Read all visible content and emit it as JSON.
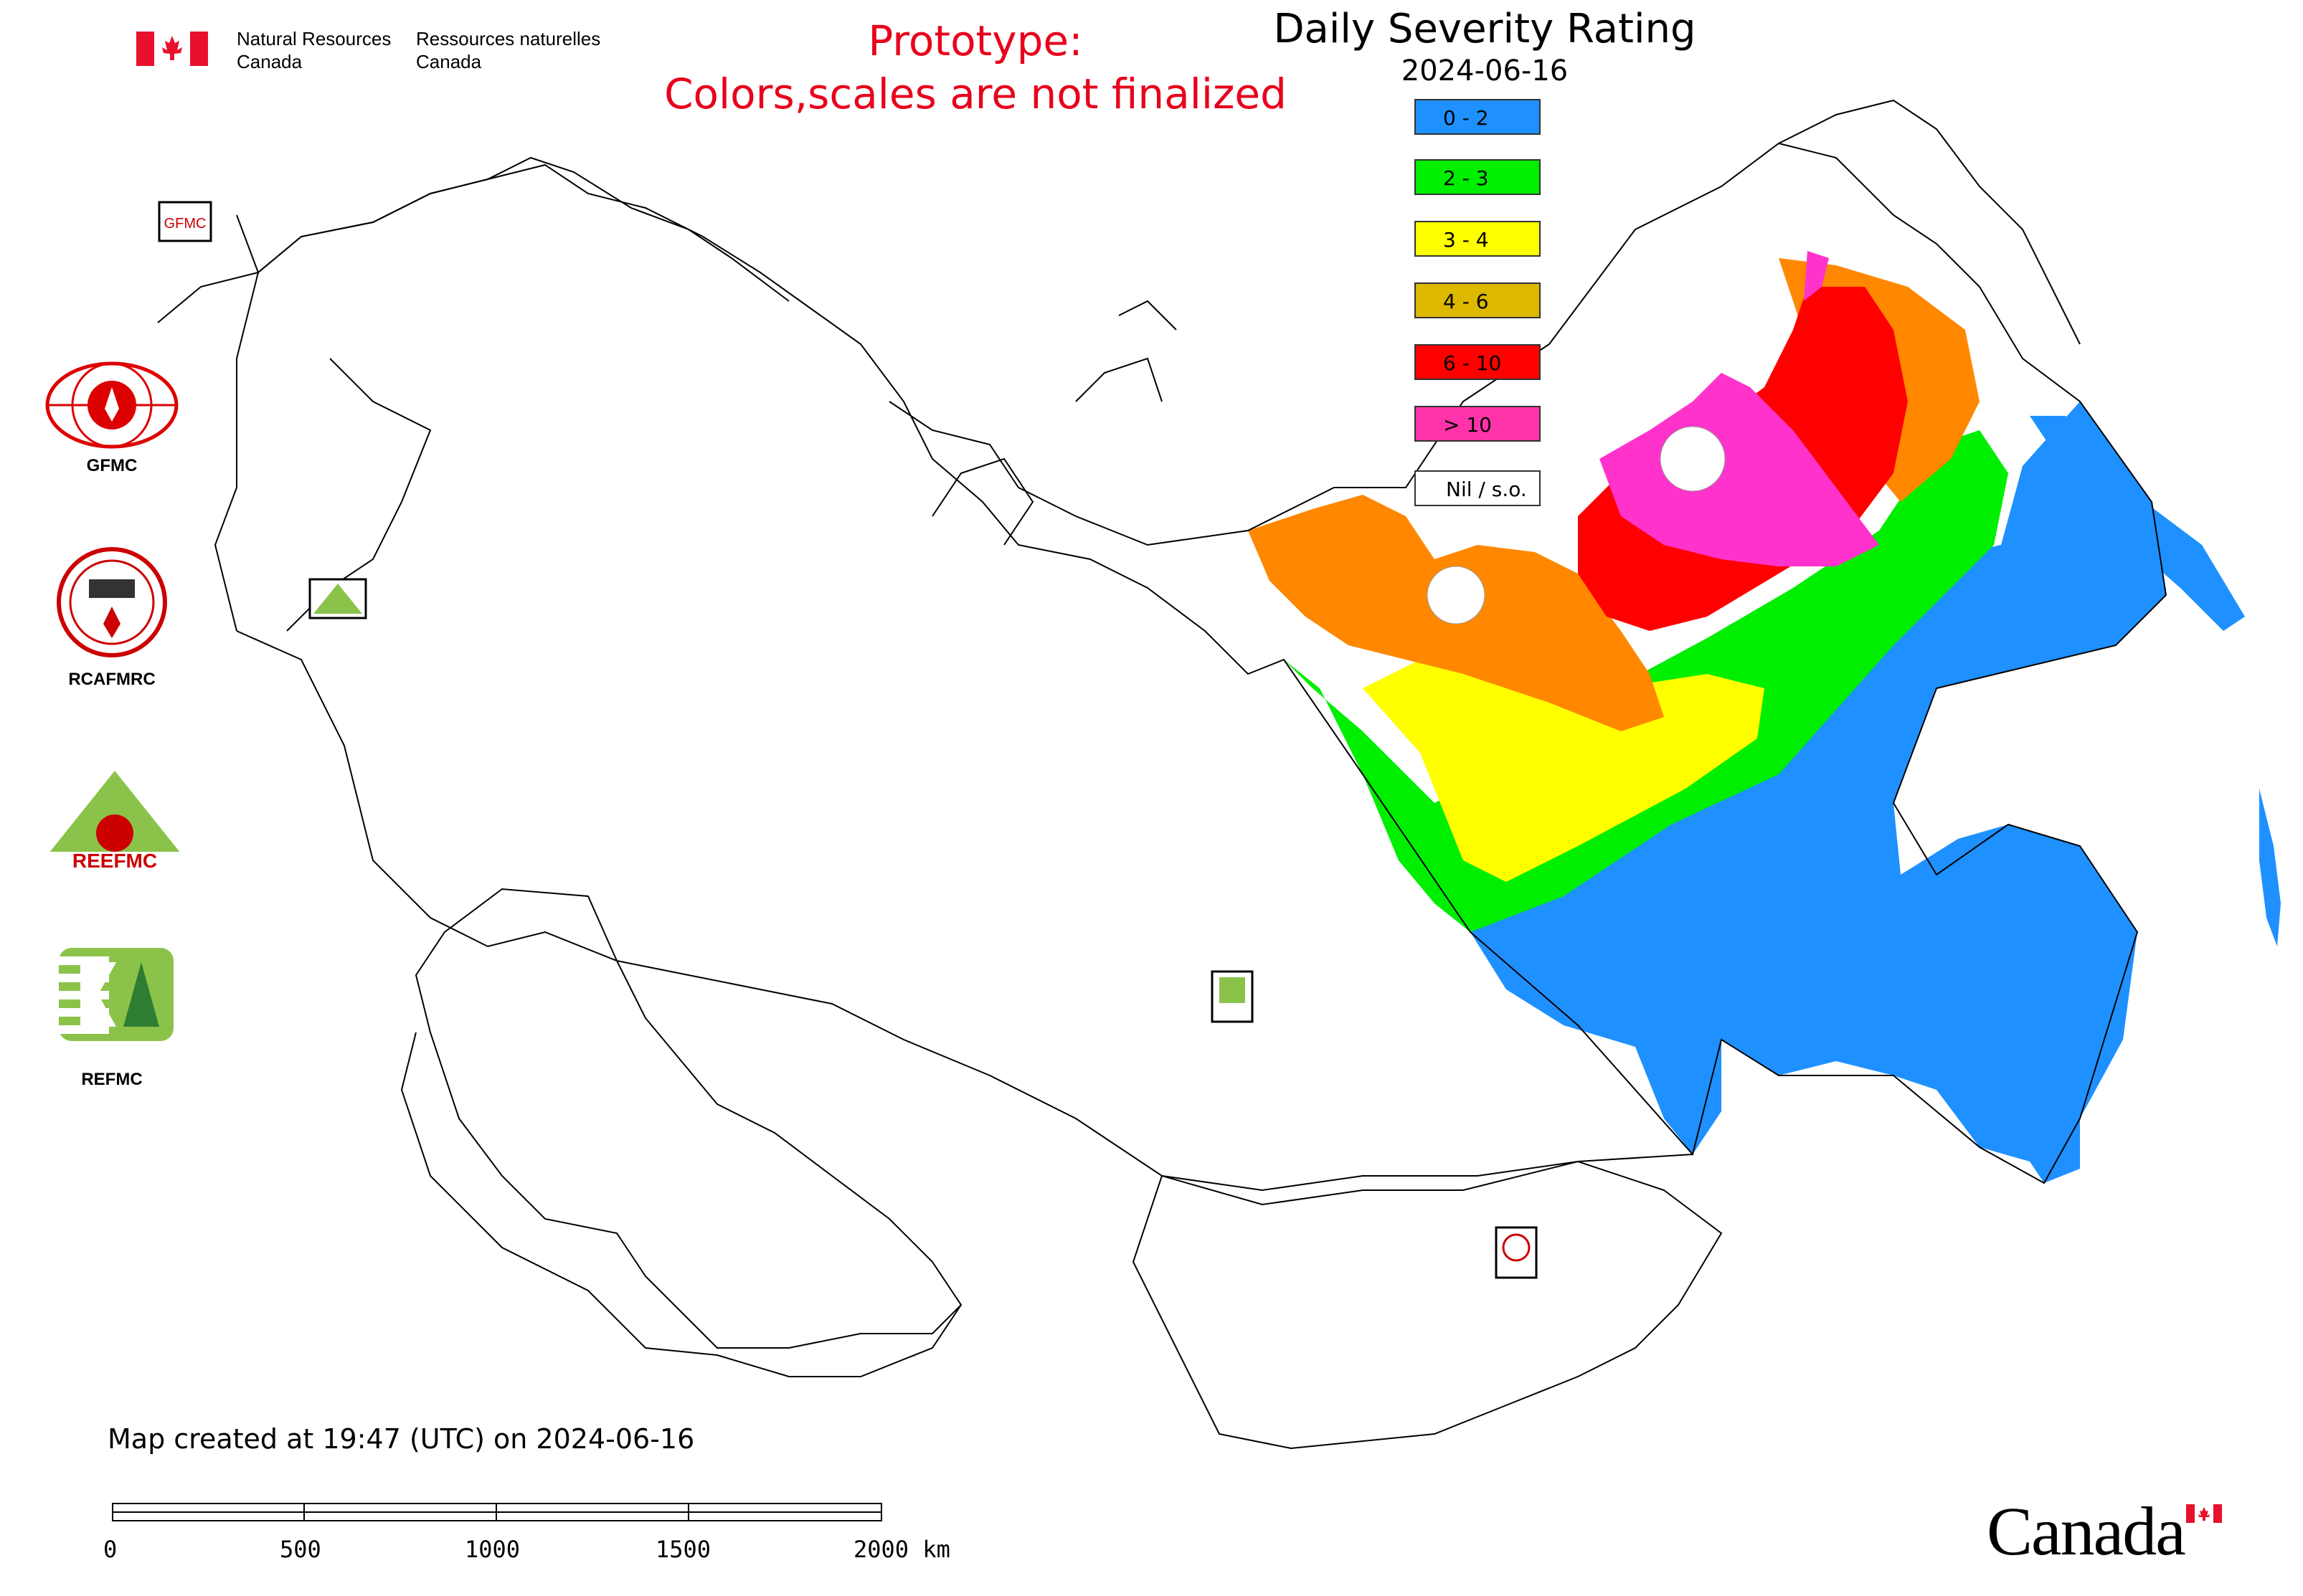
{
  "header": {
    "agency_en": [
      "Natural Resources",
      "Canada"
    ],
    "agency_fr": [
      "Ressources naturelles",
      "Canada"
    ],
    "prototype_line1": "Prototype:",
    "prototype_line2": "Colors,scales are not finalized",
    "title": "Daily Severity Rating",
    "date": "2024-06-16"
  },
  "legend": [
    {
      "label": "0 - 2",
      "color": "#1e90ff"
    },
    {
      "label": "2 - 3",
      "color": "#00ee00"
    },
    {
      "label": "3 - 4",
      "color": "#ffff00"
    },
    {
      "label": "4 - 6",
      "color": "#ddb800"
    },
    {
      "label": "6 - 10",
      "color": "#ff0000"
    },
    {
      "label": "> 10",
      "color": "#ff33aa"
    },
    {
      "label": "Nil / s.o.",
      "color": "#ffffff"
    }
  ],
  "side_logos": [
    {
      "name": "GFMC",
      "caption": "GFMC"
    },
    {
      "name": "RCAFMRC",
      "caption": "RCAFMRC"
    },
    {
      "name": "REEFMC",
      "caption": "REEFMC"
    },
    {
      "name": "REFMC",
      "caption": "REFMC"
    }
  ],
  "footer": {
    "created": "Map created at 19:47 (UTC) on 2024-06-16",
    "scale_labels": [
      "0",
      "500",
      "1000",
      "1500",
      "2000 km"
    ],
    "wordmark": "Canada"
  }
}
